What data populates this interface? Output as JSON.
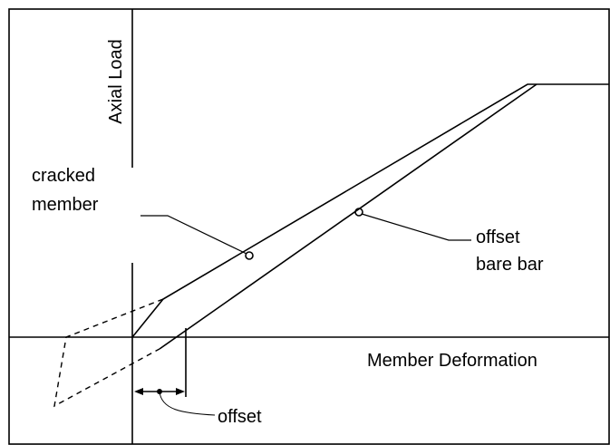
{
  "axes": {
    "y_label": "Axial Load",
    "x_label": "Member Deformation"
  },
  "labels": {
    "cracked_member": [
      "cracked",
      "member"
    ],
    "offset_bare_bar": [
      "offset",
      "bare bar"
    ],
    "offset": "offset"
  }
}
